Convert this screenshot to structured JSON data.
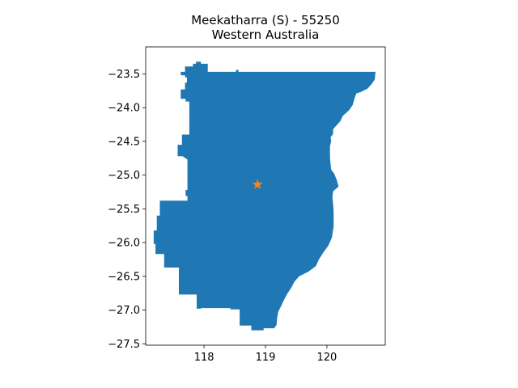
{
  "title": {
    "line1": "Meekatharra (S) - 55250",
    "line2": "Western Australia"
  },
  "chart_data": {
    "type": "map",
    "xlim": [
      117.05,
      120.95
    ],
    "ylim": [
      -27.52,
      -23.1
    ],
    "x_ticks": [
      118,
      119,
      120
    ],
    "y_ticks": [
      -23.5,
      -24.0,
      -24.5,
      -25.0,
      -25.5,
      -26.0,
      -26.5,
      -27.0,
      -27.5
    ],
    "x_tick_labels": [
      "118",
      "119",
      "120"
    ],
    "y_tick_labels": [
      "−23.5",
      "−24.0",
      "−24.5",
      "−25.0",
      "−25.5",
      "−26.0",
      "−26.5",
      "−27.0",
      "−27.5"
    ],
    "region_color": "#1f77b4",
    "marker_color": "#ff7f0e",
    "marker": {
      "lon": 118.87,
      "lat": -25.14,
      "symbol": "star"
    },
    "boundary": [
      [
        117.62,
        -23.47
      ],
      [
        117.69,
        -23.47
      ],
      [
        117.69,
        -23.39
      ],
      [
        117.82,
        -23.39
      ],
      [
        117.82,
        -23.35
      ],
      [
        117.87,
        -23.35
      ],
      [
        117.87,
        -23.32
      ],
      [
        117.95,
        -23.32
      ],
      [
        117.95,
        -23.35
      ],
      [
        118.06,
        -23.35
      ],
      [
        118.06,
        -23.47
      ],
      [
        118.52,
        -23.47
      ],
      [
        118.52,
        -23.44
      ],
      [
        118.56,
        -23.44
      ],
      [
        118.56,
        -23.47
      ],
      [
        120.79,
        -23.47
      ],
      [
        120.78,
        -23.58
      ],
      [
        120.73,
        -23.65
      ],
      [
        120.66,
        -23.72
      ],
      [
        120.55,
        -23.77
      ],
      [
        120.48,
        -23.79
      ],
      [
        120.45,
        -23.86
      ],
      [
        120.42,
        -23.96
      ],
      [
        120.36,
        -24.04
      ],
      [
        120.26,
        -24.12
      ],
      [
        120.22,
        -24.2
      ],
      [
        120.14,
        -24.28
      ],
      [
        120.1,
        -24.32
      ],
      [
        120.1,
        -24.39
      ],
      [
        120.06,
        -24.44
      ],
      [
        120.07,
        -24.5
      ],
      [
        120.05,
        -24.57
      ],
      [
        120.05,
        -24.75
      ],
      [
        120.07,
        -24.92
      ],
      [
        120.12,
        -24.98
      ],
      [
        120.16,
        -25.07
      ],
      [
        120.19,
        -25.17
      ],
      [
        120.1,
        -25.24
      ],
      [
        120.09,
        -25.34
      ],
      [
        120.1,
        -25.42
      ],
      [
        120.11,
        -25.53
      ],
      [
        120.11,
        -25.76
      ],
      [
        120.08,
        -25.93
      ],
      [
        120.02,
        -26.05
      ],
      [
        119.94,
        -26.15
      ],
      [
        119.87,
        -26.25
      ],
      [
        119.82,
        -26.35
      ],
      [
        119.7,
        -26.43
      ],
      [
        119.55,
        -26.5
      ],
      [
        119.47,
        -26.58
      ],
      [
        119.42,
        -26.67
      ],
      [
        119.36,
        -26.75
      ],
      [
        119.3,
        -26.85
      ],
      [
        119.25,
        -26.95
      ],
      [
        119.21,
        -27.02
      ],
      [
        119.19,
        -27.12
      ],
      [
        119.18,
        -27.22
      ],
      [
        119.14,
        -27.27
      ],
      [
        118.97,
        -27.27
      ],
      [
        118.97,
        -27.3
      ],
      [
        118.77,
        -27.3
      ],
      [
        118.77,
        -27.23
      ],
      [
        118.58,
        -27.23
      ],
      [
        118.58,
        -26.99
      ],
      [
        118.43,
        -26.99
      ],
      [
        118.43,
        -26.97
      ],
      [
        117.95,
        -26.97
      ],
      [
        117.95,
        -26.98
      ],
      [
        117.88,
        -26.98
      ],
      [
        117.88,
        -26.77
      ],
      [
        117.59,
        -26.77
      ],
      [
        117.59,
        -26.37
      ],
      [
        117.35,
        -26.37
      ],
      [
        117.35,
        -26.17
      ],
      [
        117.21,
        -26.17
      ],
      [
        117.21,
        -26.02
      ],
      [
        117.18,
        -26.02
      ],
      [
        117.18,
        -25.82
      ],
      [
        117.23,
        -25.82
      ],
      [
        117.23,
        -25.6
      ],
      [
        117.28,
        -25.6
      ],
      [
        117.28,
        -25.38
      ],
      [
        117.73,
        -25.38
      ],
      [
        117.73,
        -25.31
      ],
      [
        117.7,
        -25.31
      ],
      [
        117.7,
        -25.22
      ],
      [
        117.73,
        -25.22
      ],
      [
        117.73,
        -24.77
      ],
      [
        117.65,
        -24.72
      ],
      [
        117.57,
        -24.72
      ],
      [
        117.57,
        -24.55
      ],
      [
        117.64,
        -24.55
      ],
      [
        117.64,
        -24.4
      ],
      [
        117.76,
        -24.4
      ],
      [
        117.76,
        -23.91
      ],
      [
        117.7,
        -23.91
      ],
      [
        117.7,
        -23.87
      ],
      [
        117.62,
        -23.87
      ],
      [
        117.62,
        -23.73
      ],
      [
        117.69,
        -23.73
      ],
      [
        117.69,
        -23.63
      ],
      [
        117.72,
        -23.63
      ],
      [
        117.72,
        -23.55
      ],
      [
        117.69,
        -23.55
      ],
      [
        117.69,
        -23.52
      ],
      [
        117.62,
        -23.52
      ]
    ]
  }
}
